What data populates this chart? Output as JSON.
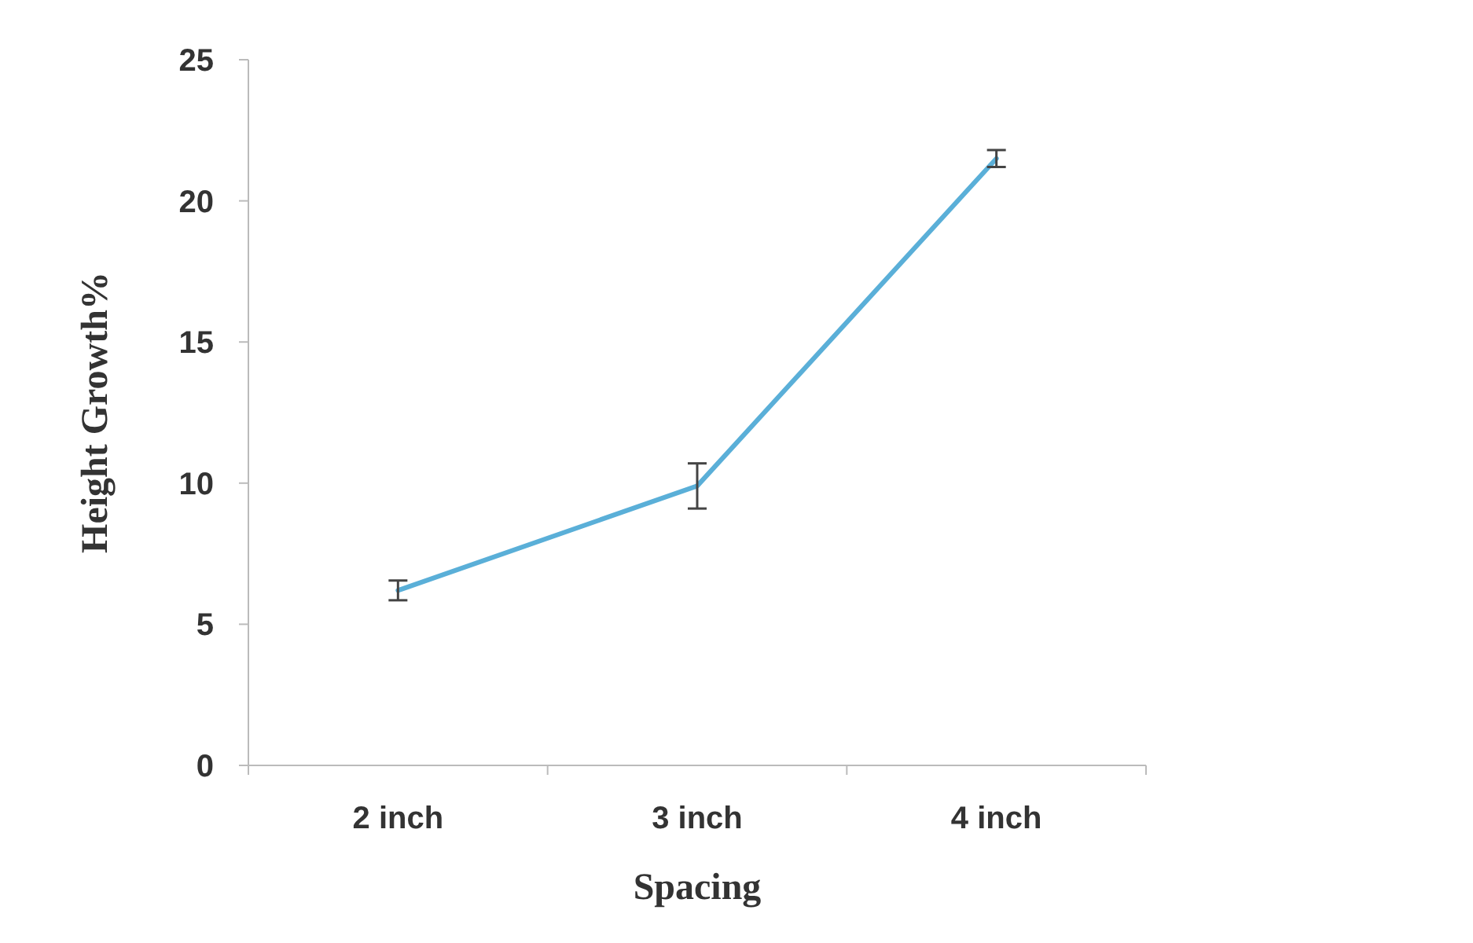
{
  "chart_data": {
    "type": "line",
    "xlabel": "Spacing",
    "ylabel": "Height Growth%",
    "categories": [
      "2 inch",
      "3 inch",
      "4 inch"
    ],
    "series": [
      {
        "color": "#5aafd8",
        "values": [
          6.2,
          9.9,
          21.5
        ],
        "errors": [
          0.35,
          0.8,
          0.3
        ]
      }
    ],
    "ylim": [
      0,
      25
    ],
    "yticks": [
      0,
      5,
      10,
      15,
      20,
      25
    ],
    "grid": false,
    "marker": "none"
  }
}
